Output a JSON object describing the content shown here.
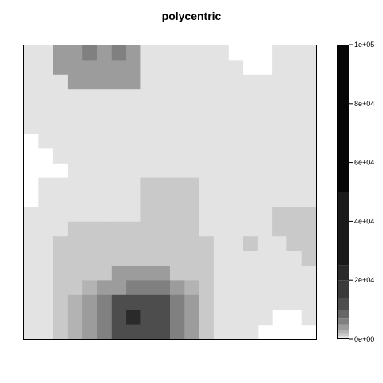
{
  "chart_data": {
    "type": "heatmap",
    "title": "polycentric",
    "xlabel": "",
    "ylabel": "",
    "colorbar": {
      "ticks": [
        "0e+00",
        "2e+04",
        "4e+04",
        "6e+04",
        "8e+04",
        "1e+05"
      ],
      "tick_values": [
        0,
        20000,
        40000,
        60000,
        80000,
        100000
      ],
      "range": [
        0,
        100000
      ],
      "breaks": [
        0,
        1000,
        2000,
        3000,
        5000,
        7000,
        10000,
        14000,
        20000,
        25000,
        50000,
        100000
      ],
      "colors": [
        "#e3e3e3",
        "#c9c9c9",
        "#b3b3b3",
        "#9c9c9c",
        "#808080",
        "#666666",
        "#4d4d4d",
        "#3a3a3a",
        "#2a2a2a",
        "#1a1a1a",
        "#050505"
      ]
    },
    "grid": {
      "nrow": 20,
      "ncol": 20,
      "na": -1,
      "values": [
        [
          500,
          500,
          3500,
          3500,
          5500,
          3500,
          5500,
          3500,
          500,
          500,
          500,
          500,
          500,
          500,
          -1,
          -1,
          -1,
          500,
          500,
          500
        ],
        [
          500,
          500,
          3500,
          4500,
          4500,
          4500,
          4500,
          3500,
          500,
          500,
          500,
          500,
          500,
          500,
          500,
          -1,
          -1,
          500,
          500,
          500
        ],
        [
          500,
          500,
          500,
          3500,
          3500,
          3500,
          3500,
          3500,
          500,
          500,
          500,
          500,
          500,
          500,
          500,
          500,
          500,
          500,
          500,
          500
        ],
        [
          500,
          500,
          500,
          500,
          500,
          500,
          500,
          500,
          500,
          500,
          500,
          500,
          500,
          500,
          500,
          500,
          500,
          500,
          500,
          500
        ],
        [
          500,
          500,
          500,
          500,
          500,
          500,
          500,
          500,
          500,
          500,
          500,
          500,
          500,
          500,
          500,
          500,
          500,
          500,
          500,
          500
        ],
        [
          500,
          500,
          500,
          500,
          500,
          500,
          500,
          500,
          500,
          500,
          500,
          500,
          500,
          500,
          500,
          500,
          500,
          500,
          500,
          500
        ],
        [
          -1,
          500,
          500,
          500,
          500,
          500,
          500,
          500,
          500,
          500,
          500,
          500,
          500,
          500,
          500,
          500,
          500,
          500,
          500,
          500
        ],
        [
          -1,
          -1,
          500,
          500,
          500,
          500,
          500,
          500,
          500,
          500,
          500,
          500,
          500,
          500,
          500,
          500,
          500,
          500,
          500,
          500
        ],
        [
          -1,
          -1,
          -1,
          500,
          500,
          500,
          500,
          500,
          500,
          500,
          500,
          500,
          500,
          500,
          500,
          500,
          500,
          500,
          500,
          500
        ],
        [
          -1,
          500,
          500,
          500,
          500,
          500,
          500,
          500,
          1500,
          1500,
          1500,
          1500,
          500,
          500,
          500,
          500,
          500,
          500,
          500,
          500
        ],
        [
          -1,
          500,
          500,
          500,
          500,
          500,
          500,
          500,
          1500,
          1500,
          1500,
          1500,
          500,
          500,
          500,
          500,
          500,
          500,
          500,
          500
        ],
        [
          500,
          500,
          500,
          500,
          500,
          500,
          500,
          500,
          1500,
          1500,
          1500,
          1500,
          500,
          500,
          500,
          500,
          500,
          1500,
          1500,
          1500
        ],
        [
          500,
          500,
          500,
          1500,
          1500,
          1500,
          1500,
          1500,
          1500,
          1500,
          1500,
          1500,
          500,
          500,
          500,
          500,
          500,
          1500,
          1500,
          1500
        ],
        [
          500,
          500,
          1500,
          1500,
          1500,
          1500,
          1500,
          1500,
          1500,
          1500,
          1500,
          1500,
          1500,
          500,
          500,
          1500,
          500,
          500,
          1500,
          1500
        ],
        [
          500,
          500,
          1500,
          1500,
          1500,
          1500,
          1500,
          1500,
          1500,
          1500,
          1500,
          1500,
          1500,
          500,
          500,
          500,
          500,
          500,
          500,
          1500
        ],
        [
          500,
          500,
          1500,
          1500,
          1500,
          1500,
          4000,
          4000,
          4000,
          4000,
          1500,
          1500,
          1500,
          500,
          500,
          500,
          500,
          500,
          500,
          500
        ],
        [
          500,
          500,
          1500,
          1500,
          2500,
          4000,
          4000,
          5500,
          5500,
          5500,
          4000,
          2500,
          1500,
          500,
          500,
          500,
          500,
          500,
          500,
          500
        ],
        [
          500,
          500,
          1500,
          2500,
          4000,
          5500,
          12000,
          12000,
          12000,
          12000,
          5500,
          4000,
          1500,
          500,
          500,
          500,
          500,
          500,
          500,
          500
        ],
        [
          500,
          500,
          1500,
          2500,
          4000,
          5500,
          12000,
          20000,
          12000,
          12000,
          5500,
          4000,
          1500,
          500,
          500,
          500,
          500,
          -1,
          -1,
          500
        ],
        [
          500,
          500,
          1500,
          2500,
          4000,
          5500,
          12000,
          12000,
          12000,
          12000,
          5500,
          4000,
          1500,
          500,
          500,
          500,
          -1,
          -1,
          -1,
          -1
        ]
      ]
    }
  }
}
